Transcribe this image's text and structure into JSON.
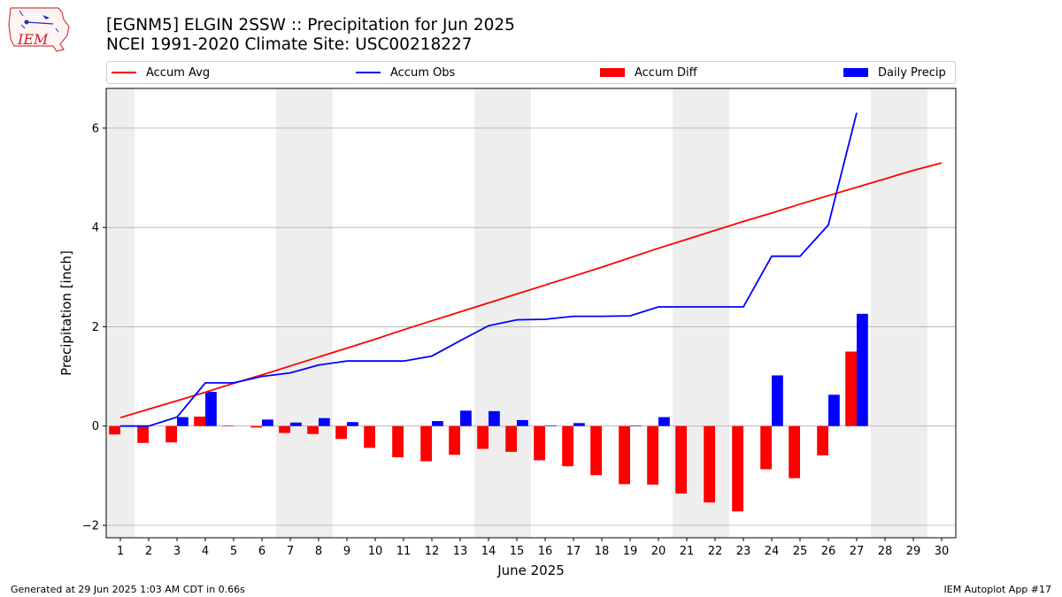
{
  "logo": {
    "text": "IEM",
    "name": "iem-logo"
  },
  "header": {
    "title_line1": "[EGNM5] ELGIN 2SSW :: Precipitation for Jun 2025",
    "title_line2": "NCEI 1991-2020 Climate Site: USC00218227"
  },
  "legend": {
    "items": [
      {
        "label": "Accum Avg",
        "kind": "line",
        "color": "#ff0000"
      },
      {
        "label": "Accum Obs",
        "kind": "line",
        "color": "#0000ff"
      },
      {
        "label": "Accum Diff",
        "kind": "box",
        "color": "#ff0000"
      },
      {
        "label": "Daily Precip",
        "kind": "box",
        "color": "#0000ff"
      }
    ]
  },
  "footer": {
    "left": "Generated at 29 Jun 2025 1:03 AM CDT in 0.66s",
    "right": "IEM Autoplot App #17"
  },
  "chart_data": {
    "type": "bar",
    "xlabel": "June 2025",
    "ylabel": "Precipitation [inch]",
    "ylim": [
      -2.25,
      6.8
    ],
    "xlim": [
      0.5,
      30.5
    ],
    "yticks": [
      -2,
      0,
      2,
      4,
      6
    ],
    "xticks": [
      1,
      2,
      3,
      4,
      5,
      6,
      7,
      8,
      9,
      10,
      11,
      12,
      13,
      14,
      15,
      16,
      17,
      18,
      19,
      20,
      21,
      22,
      23,
      24,
      25,
      26,
      27,
      28,
      29,
      30
    ],
    "grid": "horizontal",
    "legend_position": "top",
    "weekend_shading": [
      [
        1,
        1
      ],
      [
        7,
        8
      ],
      [
        14,
        15
      ],
      [
        21,
        22
      ],
      [
        28,
        29
      ]
    ],
    "colors": {
      "avg": "#ff0000",
      "obs": "#0000ff",
      "shade": "#eeeeee",
      "grid": "#b0b0b0"
    },
    "series": [
      {
        "name": "Accum Avg",
        "kind": "line",
        "x": [
          1,
          2,
          3,
          4,
          5,
          6,
          7,
          8,
          9,
          10,
          11,
          12,
          13,
          14,
          15,
          16,
          17,
          18,
          19,
          20,
          21,
          22,
          23,
          24,
          25,
          26,
          27,
          28,
          29,
          30
        ],
        "values": [
          0.17,
          0.34,
          0.51,
          0.68,
          0.86,
          1.03,
          1.21,
          1.39,
          1.57,
          1.75,
          1.94,
          2.12,
          2.3,
          2.48,
          2.66,
          2.84,
          3.02,
          3.2,
          3.39,
          3.58,
          3.76,
          3.94,
          4.12,
          4.29,
          4.47,
          4.64,
          4.81,
          4.98,
          5.15,
          5.3
        ]
      },
      {
        "name": "Accum Obs",
        "kind": "line",
        "x": [
          1,
          2,
          3,
          4,
          5,
          6,
          7,
          8,
          9,
          10,
          11,
          12,
          13,
          14,
          15,
          16,
          17,
          18,
          19,
          20,
          21,
          22,
          23,
          24,
          25,
          26,
          27
        ],
        "values": [
          0.0,
          0.0,
          0.18,
          0.87,
          0.87,
          1.0,
          1.07,
          1.23,
          1.31,
          1.31,
          1.31,
          1.41,
          1.72,
          2.02,
          2.14,
          2.15,
          2.21,
          2.21,
          2.22,
          2.4,
          2.4,
          2.4,
          2.4,
          3.42,
          3.42,
          4.05,
          6.31
        ]
      },
      {
        "name": "Accum Diff",
        "kind": "bar",
        "x": [
          1,
          2,
          3,
          4,
          5,
          6,
          7,
          8,
          9,
          10,
          11,
          12,
          13,
          14,
          15,
          16,
          17,
          18,
          19,
          20,
          21,
          22,
          23,
          24,
          25,
          26,
          27
        ],
        "values": [
          -0.17,
          -0.34,
          -0.33,
          0.19,
          0.01,
          -0.03,
          -0.14,
          -0.16,
          -0.26,
          -0.44,
          -0.63,
          -0.71,
          -0.58,
          -0.46,
          -0.52,
          -0.69,
          -0.81,
          -0.99,
          -1.17,
          -1.18,
          -1.36,
          -1.54,
          -1.72,
          -0.87,
          -1.05,
          -0.59,
          1.5
        ]
      },
      {
        "name": "Daily Precip",
        "kind": "bar",
        "x": [
          1,
          2,
          3,
          4,
          5,
          6,
          7,
          8,
          9,
          10,
          11,
          12,
          13,
          14,
          15,
          16,
          17,
          18,
          19,
          20,
          21,
          22,
          23,
          24,
          25,
          26,
          27
        ],
        "values": [
          0,
          0,
          0.18,
          0.69,
          0,
          0.13,
          0.07,
          0.16,
          0.08,
          0,
          0,
          0.1,
          0.31,
          0.3,
          0.12,
          0.01,
          0.06,
          0,
          0.01,
          0.18,
          0,
          0,
          0,
          1.02,
          0,
          0.63,
          2.26
        ]
      }
    ]
  }
}
